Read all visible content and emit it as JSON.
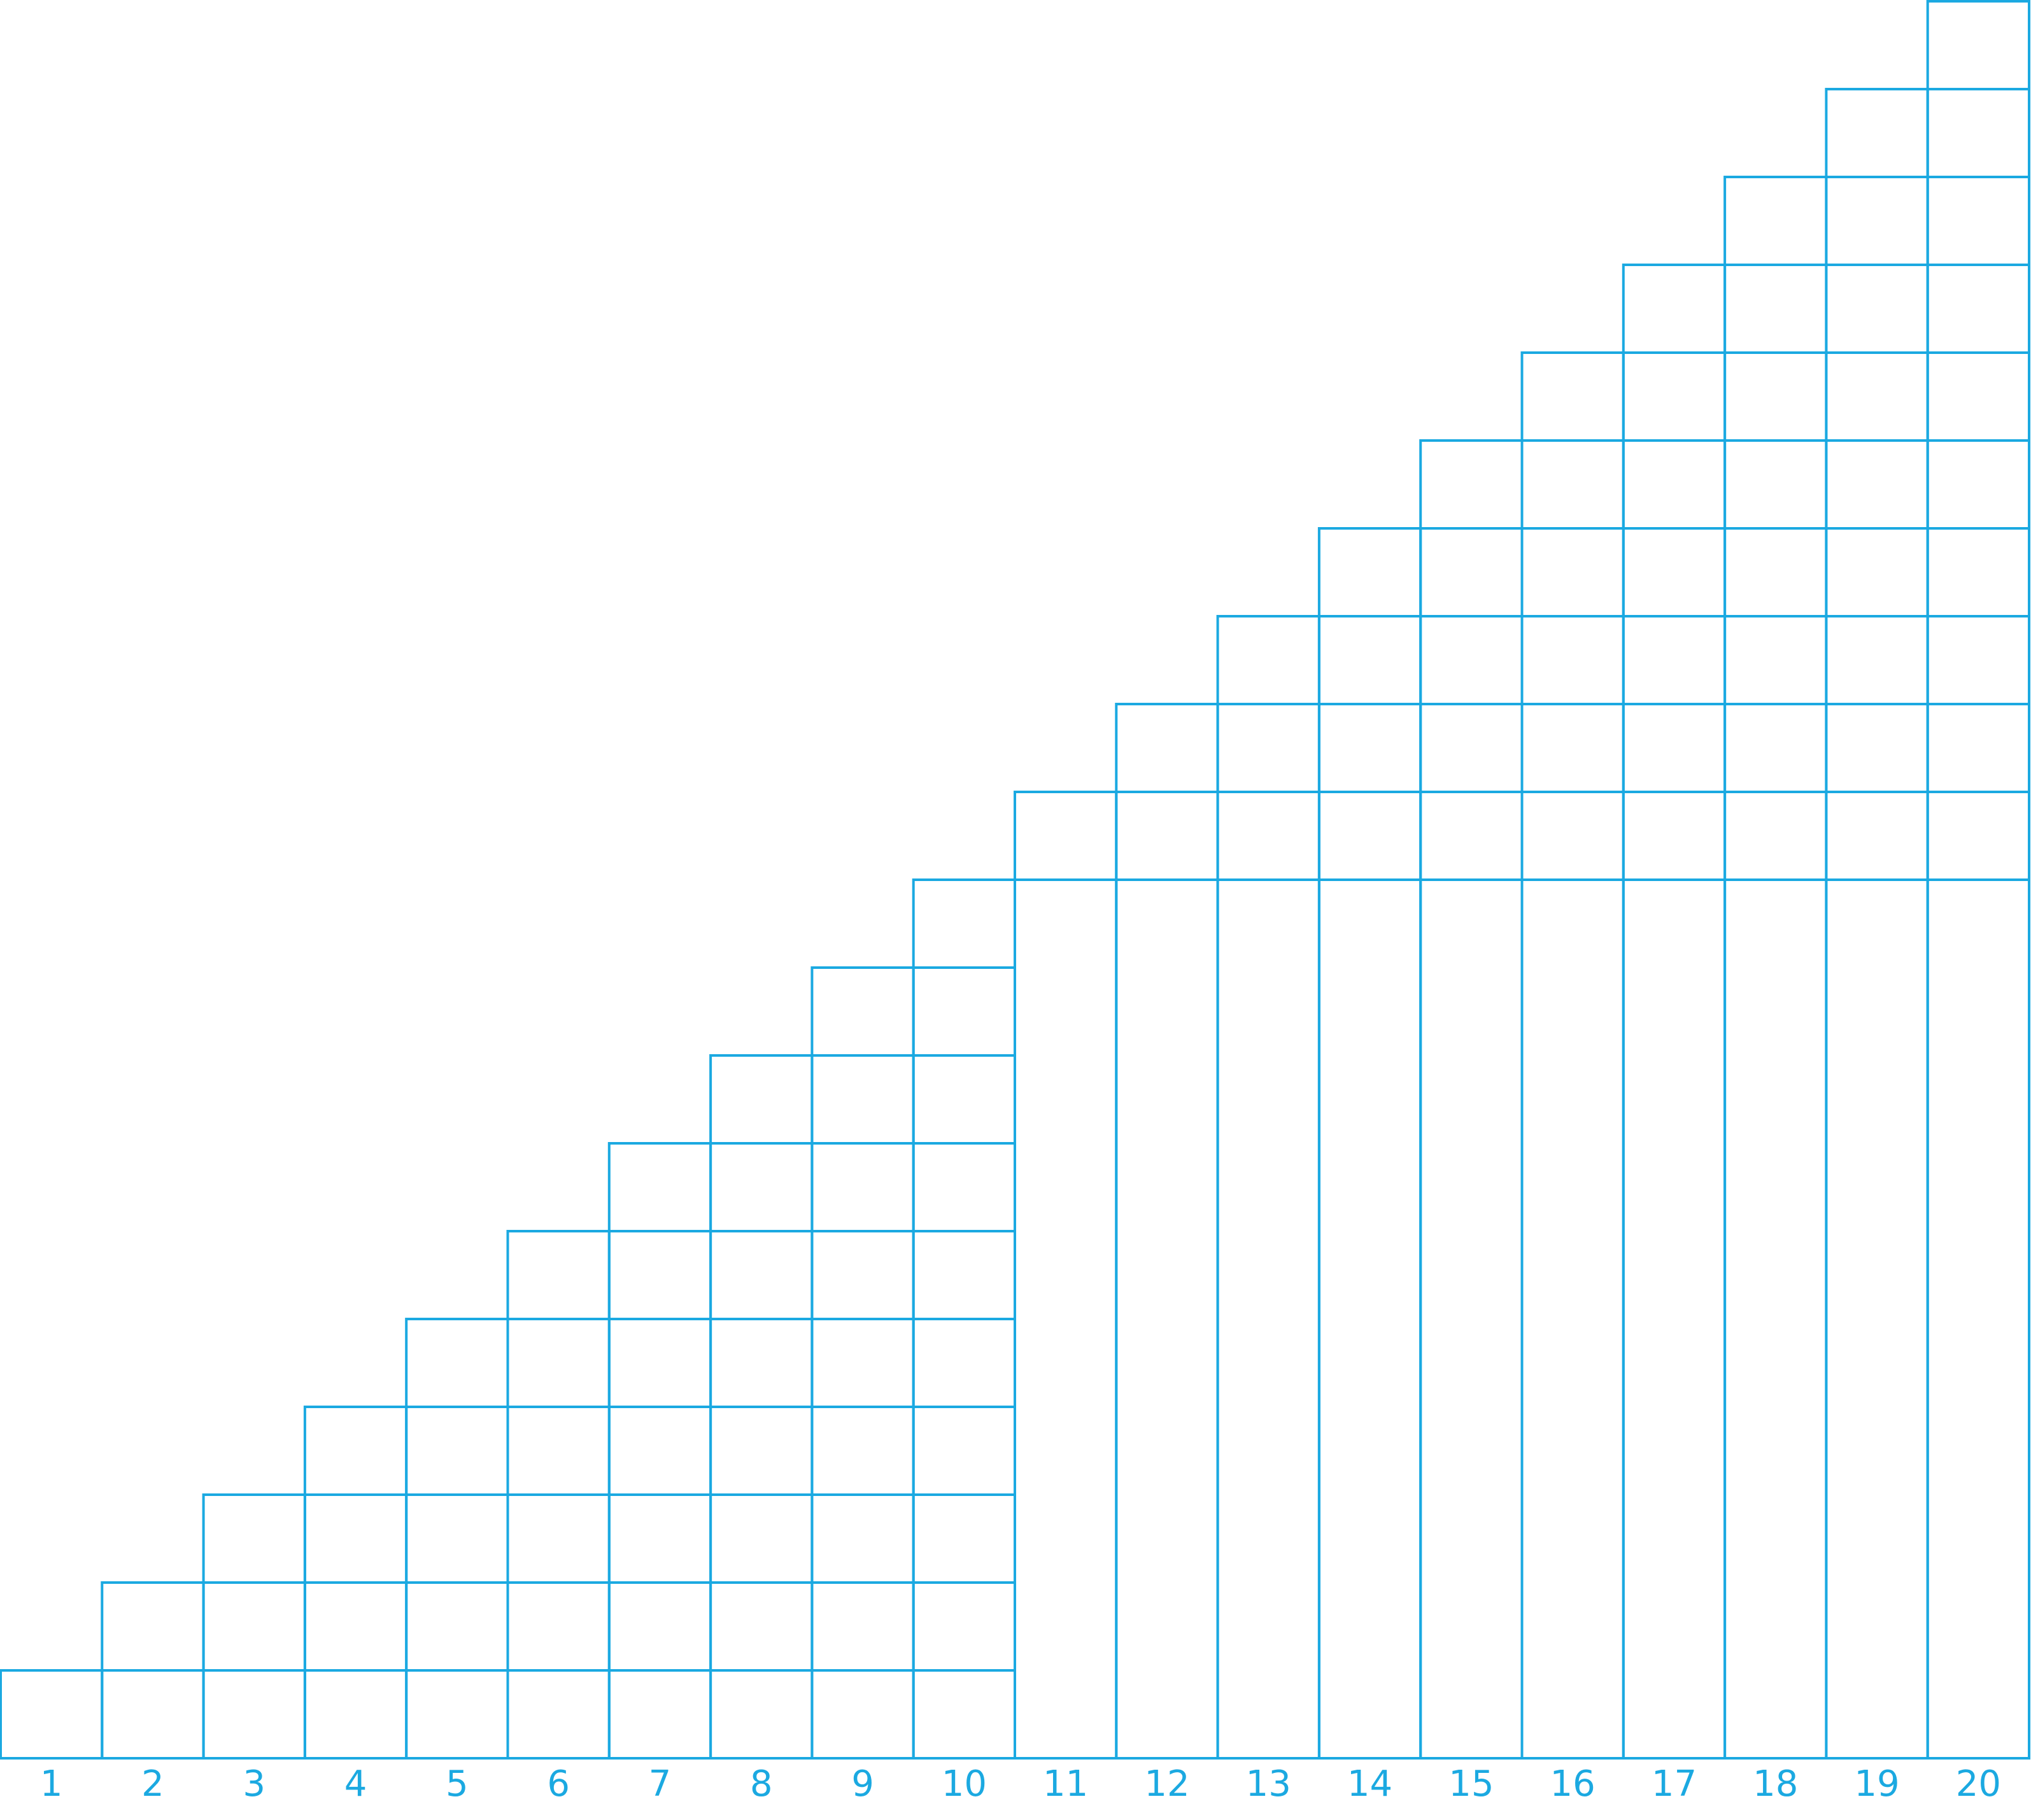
{
  "diagram": {
    "columns": [
      {
        "label": "1",
        "cells": 1
      },
      {
        "label": "2",
        "cells": 2
      },
      {
        "label": "3",
        "cells": 3
      },
      {
        "label": "4",
        "cells": 4
      },
      {
        "label": "5",
        "cells": 5
      },
      {
        "label": "6",
        "cells": 6
      },
      {
        "label": "7",
        "cells": 7
      },
      {
        "label": "8",
        "cells": 8
      },
      {
        "label": "9",
        "cells": 9
      },
      {
        "label": "10",
        "cells": 10
      },
      {
        "label": "11",
        "cells": 1
      },
      {
        "label": "12",
        "cells": 2
      },
      {
        "label": "13",
        "cells": 3
      },
      {
        "label": "14",
        "cells": 4
      },
      {
        "label": "15",
        "cells": 5
      },
      {
        "label": "16",
        "cells": 6
      },
      {
        "label": "17",
        "cells": 7
      },
      {
        "label": "18",
        "cells": 8
      },
      {
        "label": "19",
        "cells": 9
      },
      {
        "label": "20",
        "cells": 10
      }
    ],
    "line_color": "#1ba9e1",
    "label_color": "#1ba9e1"
  }
}
